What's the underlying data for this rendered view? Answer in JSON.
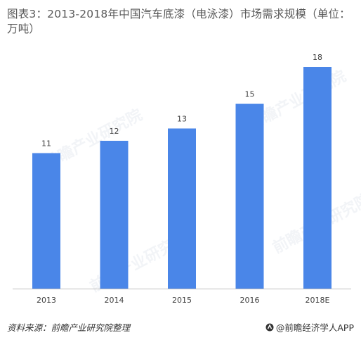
{
  "title": "图表3：2013-2018年中国汽车底漆（电泳漆）市场需求规模（单位：万吨）",
  "footer": {
    "source": "资料来源：前瞻产业研究院整理",
    "brand": "@前瞻经济学人APP"
  },
  "watermark": "前瞻产业研究院",
  "colors": {
    "bar": "#4a86e8",
    "axis": "#bfbfbf",
    "label": "#404040"
  },
  "chart_data": {
    "type": "bar",
    "categories": [
      "2013",
      "2014",
      "2015",
      "2016",
      "2018E"
    ],
    "values": [
      11,
      12,
      13,
      15,
      18
    ],
    "title": "图表3：2013-2018年中国汽车底漆（电泳漆）市场需求规模（单位：万吨）",
    "xlabel": "",
    "ylabel": "",
    "ylim": [
      0,
      18
    ],
    "grid": false,
    "legend": "none",
    "data_labels": true
  }
}
